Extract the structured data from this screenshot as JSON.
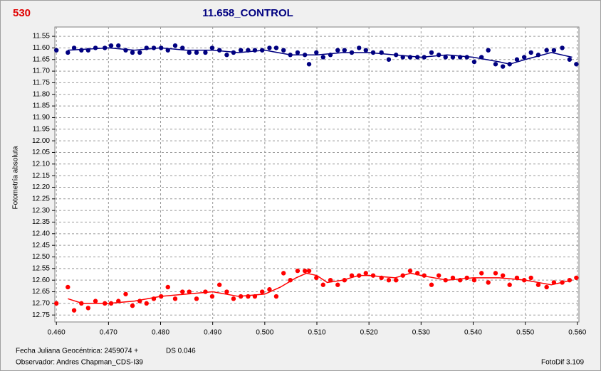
{
  "chart_data": {
    "type": "scatter",
    "title": "11.658_CONTROL",
    "label": "530",
    "ylabel": "Fotometría absoluta",
    "footer": [
      "Fecha Juliana Geocéntrica: 2459074 +",
      "DS 0.046",
      "Observador: Andres Chapman_CDS-I39",
      "FotoDif 3.109"
    ],
    "invert_y": true,
    "grid": true,
    "xlim": [
      0.4597,
      0.5603
    ],
    "ylim": [
      11.51,
      12.78
    ],
    "xticks": [
      {
        "value": 0.46,
        "label": "0.460"
      },
      {
        "value": 0.47,
        "label": "0.470"
      },
      {
        "value": 0.48,
        "label": "0.480"
      },
      {
        "value": 0.49,
        "label": "0.490"
      },
      {
        "value": 0.5,
        "label": "0.500"
      },
      {
        "value": 0.51,
        "label": "0.510"
      },
      {
        "value": 0.52,
        "label": "0.520"
      },
      {
        "value": 0.53,
        "label": "0.530"
      },
      {
        "value": 0.54,
        "label": "0.540"
      },
      {
        "value": 0.55,
        "label": "0.550"
      },
      {
        "value": 0.56,
        "label": "0.560"
      }
    ],
    "yticks": [
      {
        "value": 11.55,
        "label": "11.55"
      },
      {
        "value": 11.6,
        "label": "11.60"
      },
      {
        "value": 11.65,
        "label": "11.65"
      },
      {
        "value": 11.7,
        "label": "11.70"
      },
      {
        "value": 11.75,
        "label": "11.75"
      },
      {
        "value": 11.8,
        "label": "11.80"
      },
      {
        "value": 11.85,
        "label": "11.85"
      },
      {
        "value": 11.9,
        "label": "11.90"
      },
      {
        "value": 11.95,
        "label": "11.95"
      },
      {
        "value": 12.0,
        "label": "12.00"
      },
      {
        "value": 12.05,
        "label": "12.05"
      },
      {
        "value": 12.1,
        "label": "12.10"
      },
      {
        "value": 12.15,
        "label": "12.15"
      },
      {
        "value": 12.2,
        "label": "12.20"
      },
      {
        "value": 12.25,
        "label": "12.25"
      },
      {
        "value": 12.3,
        "label": "12.30"
      },
      {
        "value": 12.35,
        "label": "12.35"
      },
      {
        "value": 12.4,
        "label": "12.40"
      },
      {
        "value": 12.45,
        "label": "12.45"
      },
      {
        "value": 12.5,
        "label": "12.50"
      },
      {
        "value": 12.55,
        "label": "12.55"
      },
      {
        "value": 12.6,
        "label": "12.60"
      },
      {
        "value": 12.65,
        "label": "12.65"
      },
      {
        "value": 12.7,
        "label": "12.70"
      },
      {
        "value": 12.75,
        "label": "12.75"
      }
    ],
    "x": [
      0.46,
      0.4622,
      0.4634,
      0.4648,
      0.4661,
      0.4675,
      0.4693,
      0.4705,
      0.4719,
      0.4733,
      0.4746,
      0.476,
      0.4773,
      0.4787,
      0.4801,
      0.4814,
      0.4828,
      0.4842,
      0.4855,
      0.4869,
      0.4886,
      0.4899,
      0.4913,
      0.4927,
      0.494,
      0.4954,
      0.4968,
      0.4981,
      0.4995,
      0.5009,
      0.5022,
      0.5036,
      0.5049,
      0.5063,
      0.5077,
      0.5085,
      0.5099,
      0.5112,
      0.5126,
      0.514,
      0.5153,
      0.5167,
      0.5181,
      0.5194,
      0.5208,
      0.5224,
      0.5238,
      0.5252,
      0.5265,
      0.5279,
      0.5293,
      0.5306,
      0.532,
      0.5334,
      0.5347,
      0.5361,
      0.5375,
      0.5388,
      0.5402,
      0.5416,
      0.5429,
      0.5443,
      0.5457,
      0.547,
      0.5484,
      0.5498,
      0.5511,
      0.5525,
      0.5541,
      0.5555,
      0.5571,
      0.5585,
      0.5598
    ],
    "series": [
      {
        "color": "#000080",
        "values": [
          11.61,
          11.62,
          11.6,
          11.61,
          11.61,
          11.6,
          11.6,
          11.59,
          11.59,
          11.61,
          11.62,
          11.62,
          11.6,
          11.6,
          11.6,
          11.61,
          11.59,
          11.6,
          11.62,
          11.62,
          11.62,
          11.6,
          11.61,
          11.63,
          11.62,
          11.61,
          11.61,
          11.61,
          11.61,
          11.6,
          11.6,
          11.61,
          11.63,
          11.62,
          11.63,
          11.67,
          11.62,
          11.64,
          11.63,
          11.61,
          11.61,
          11.62,
          11.6,
          11.61,
          11.62,
          11.62,
          11.65,
          11.63,
          11.64,
          11.64,
          11.64,
          11.64,
          11.62,
          11.63,
          11.64,
          11.64,
          11.64,
          11.64,
          11.66,
          11.64,
          11.61,
          11.67,
          11.68,
          11.67,
          11.65,
          11.64,
          11.62,
          11.63,
          11.61,
          11.61,
          11.6,
          11.65,
          11.67
        ]
      },
      {
        "color": "#ff0000",
        "values": [
          12.7,
          12.63,
          12.73,
          12.7,
          12.72,
          12.69,
          12.7,
          12.7,
          12.69,
          12.66,
          12.71,
          12.69,
          12.7,
          12.68,
          12.67,
          12.63,
          12.68,
          12.65,
          12.65,
          12.68,
          12.65,
          12.67,
          12.62,
          12.65,
          12.68,
          12.67,
          12.67,
          12.67,
          12.65,
          12.64,
          12.67,
          12.57,
          12.6,
          12.56,
          12.56,
          12.56,
          12.59,
          12.62,
          12.6,
          12.62,
          12.6,
          12.58,
          12.58,
          12.57,
          12.58,
          12.59,
          12.6,
          12.6,
          12.58,
          12.56,
          12.57,
          12.58,
          12.62,
          12.58,
          12.6,
          12.59,
          12.6,
          12.59,
          12.6,
          12.57,
          12.61,
          12.57,
          12.58,
          12.62,
          12.59,
          12.6,
          12.59,
          12.62,
          12.63,
          12.61,
          12.61,
          12.6,
          12.59
        ]
      }
    ],
    "trends": [
      {
        "color": "#000080",
        "x": [
          0.4622,
          0.47,
          0.475,
          0.48,
          0.485,
          0.49,
          0.495,
          0.5,
          0.505,
          0.51,
          0.515,
          0.52,
          0.525,
          0.53,
          0.535,
          0.54,
          0.545,
          0.547,
          0.55,
          0.555,
          0.559
        ],
        "values": [
          11.61,
          11.6,
          11.61,
          11.6,
          11.61,
          11.61,
          11.62,
          11.61,
          11.63,
          11.63,
          11.62,
          11.62,
          11.63,
          11.64,
          11.63,
          11.64,
          11.66,
          11.67,
          11.65,
          11.62,
          11.64
        ]
      },
      {
        "color": "#ff0000",
        "x": [
          0.4622,
          0.465,
          0.47,
          0.475,
          0.48,
          0.485,
          0.49,
          0.495,
          0.5,
          0.503,
          0.506,
          0.508,
          0.51,
          0.512,
          0.515,
          0.518,
          0.52,
          0.525,
          0.528,
          0.53,
          0.535,
          0.54,
          0.545,
          0.55,
          0.555,
          0.559
        ],
        "values": [
          12.68,
          12.7,
          12.7,
          12.69,
          12.67,
          12.66,
          12.65,
          12.67,
          12.66,
          12.63,
          12.59,
          12.57,
          12.58,
          12.61,
          12.6,
          12.58,
          12.58,
          12.59,
          12.57,
          12.58,
          12.6,
          12.59,
          12.59,
          12.6,
          12.62,
          12.6
        ]
      }
    ]
  }
}
